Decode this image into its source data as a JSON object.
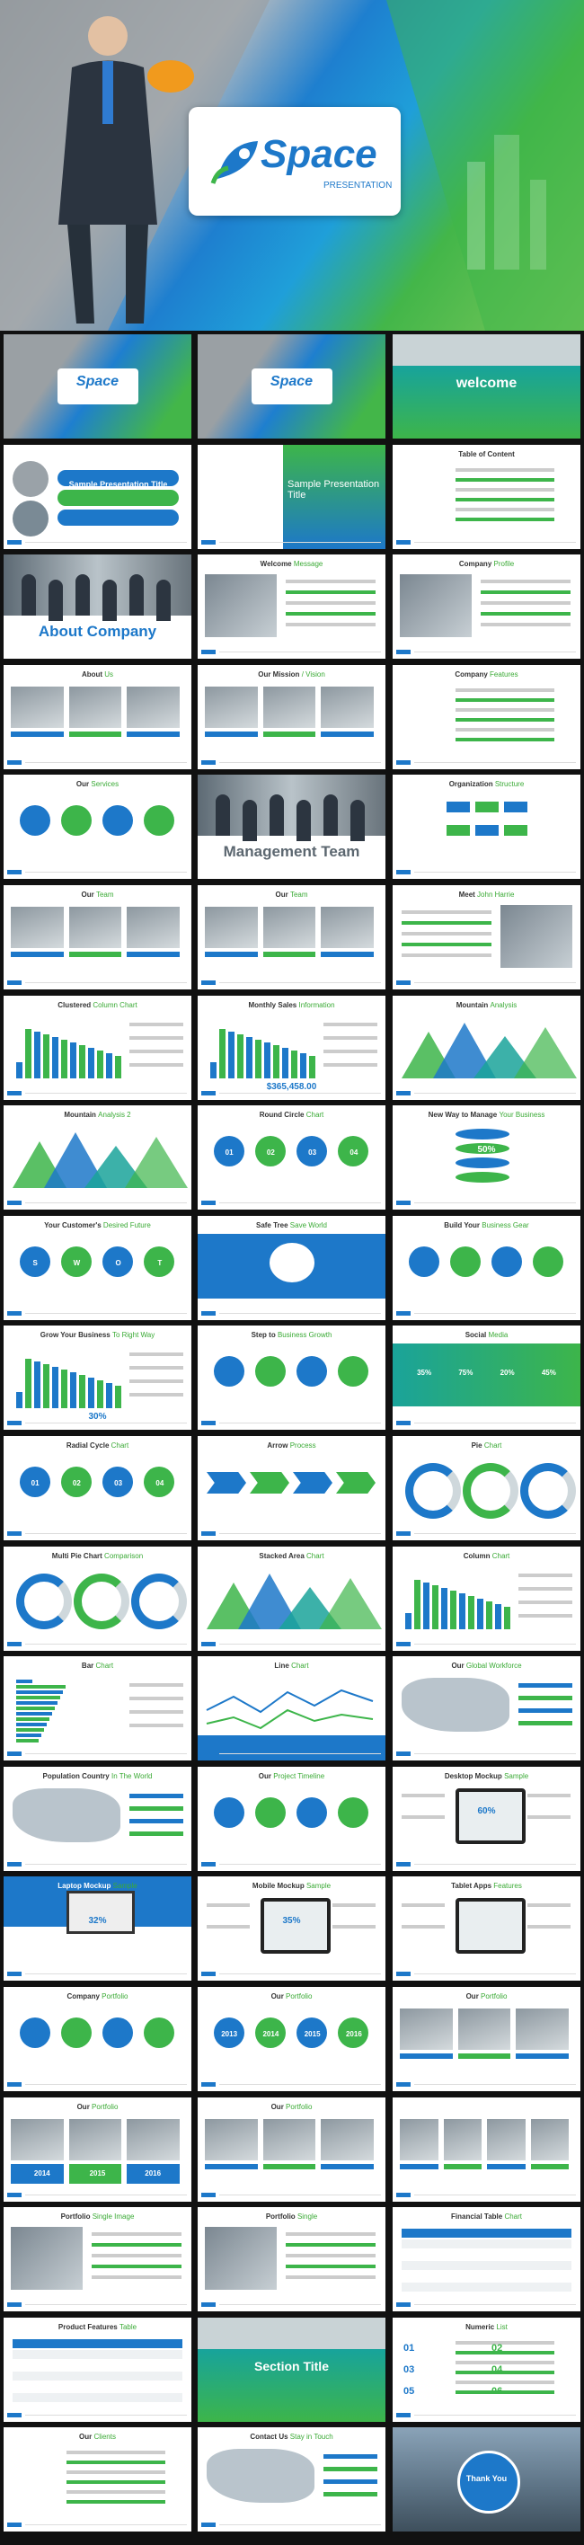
{
  "hero": {
    "logo": "Space",
    "tagline": "PRESENTATION"
  },
  "slides": [
    {
      "title": "Space"
    },
    {
      "title": "Space"
    },
    {
      "title": "welcome"
    },
    {
      "title": "Sample Presentation Title"
    },
    {
      "title": "Sample Presentation Title"
    },
    {
      "title": "Table of Content"
    },
    {
      "title": "About Company"
    },
    {
      "title": "Welcome",
      "accent": "Message"
    },
    {
      "title": "Company",
      "accent": "Profile"
    },
    {
      "title": "About",
      "accent": "Us"
    },
    {
      "title": "Our Mission",
      "accent": "/ Vision"
    },
    {
      "title": "Company",
      "accent": "Features"
    },
    {
      "title": "Our",
      "accent": "Services"
    },
    {
      "title": "Management Team"
    },
    {
      "title": "Organization",
      "accent": "Structure"
    },
    {
      "title": "Our",
      "accent": "Team"
    },
    {
      "title": "Our",
      "accent": "Team"
    },
    {
      "title": "Meet",
      "accent": "John Harrie"
    },
    {
      "title": "Clustered",
      "accent": "Column Chart"
    },
    {
      "title": "Monthly Sales",
      "accent": "Information",
      "labels": [
        "$365,458.00"
      ]
    },
    {
      "title": "Mountain",
      "accent": "Analysis"
    },
    {
      "title": "Mountain",
      "accent": "Analysis 2"
    },
    {
      "title": "Round Circle",
      "accent": "Chart",
      "labels": [
        "01",
        "02",
        "03",
        "04"
      ]
    },
    {
      "title": "New Way to Manage",
      "accent": "Your Business",
      "labels": [
        "50%"
      ]
    },
    {
      "title": "Your Customer's",
      "accent": "Desired Future",
      "labels": [
        "S",
        "W",
        "O",
        "T"
      ]
    },
    {
      "title": "Safe Tree",
      "accent": "Save World"
    },
    {
      "title": "Build Your",
      "accent": "Business Gear"
    },
    {
      "title": "Grow Your Business",
      "accent": "To Right Way",
      "labels": [
        "30%"
      ]
    },
    {
      "title": "Step to",
      "accent": "Business Growth"
    },
    {
      "title": "Social",
      "accent": "Media",
      "labels": [
        "35%",
        "75%",
        "20%",
        "45%"
      ]
    },
    {
      "title": "Radial Cycle",
      "accent": "Chart",
      "labels": [
        "01",
        "02",
        "03",
        "04"
      ]
    },
    {
      "title": "Arrow",
      "accent": "Process"
    },
    {
      "title": "Pie",
      "accent": "Chart"
    },
    {
      "title": "Multi Pie Chart",
      "accent": "Comparison"
    },
    {
      "title": "Stacked Area",
      "accent": "Chart"
    },
    {
      "title": "Column",
      "accent": "Chart"
    },
    {
      "title": "Bar",
      "accent": "Chart"
    },
    {
      "title": "Line",
      "accent": "Chart"
    },
    {
      "title": "Our",
      "accent": "Global Workforce"
    },
    {
      "title": "Population Country",
      "accent": "In The World"
    },
    {
      "title": "Our",
      "accent": "Project Timeline"
    },
    {
      "title": "Desktop Mockup",
      "accent": "Sample",
      "labels": [
        "60%"
      ]
    },
    {
      "title": "Laptop Mockup",
      "accent": "Sample",
      "labels": [
        "32%"
      ]
    },
    {
      "title": "Mobile Mockup",
      "accent": "Sample",
      "labels": [
        "35%"
      ]
    },
    {
      "title": "Tablet Apps",
      "accent": "Features"
    },
    {
      "title": "Company",
      "accent": "Portfolio"
    },
    {
      "title": "Our",
      "accent": "Portfolio",
      "labels": [
        "2013",
        "2014",
        "2015",
        "2016"
      ]
    },
    {
      "title": "Our",
      "accent": "Portfolio"
    },
    {
      "title": "Our",
      "accent": "Portfolio",
      "labels": [
        "2014",
        "2015",
        "2016"
      ]
    },
    {
      "title": "Our",
      "accent": "Portfolio"
    },
    {},
    {
      "title": "Portfolio",
      "accent": "Single Image"
    },
    {
      "title": "Portfolio",
      "accent": "Single"
    },
    {
      "title": "Financial Table",
      "accent": "Chart"
    },
    {
      "title": "Product Features",
      "accent": "Table"
    },
    {
      "title": "Section Title"
    },
    {
      "title": "Numeric",
      "accent": "List",
      "labels": [
        "01",
        "02",
        "03",
        "04",
        "05",
        "06"
      ]
    },
    {
      "title": "Our",
      "accent": "Clients"
    },
    {
      "title": "Contact Us",
      "accent": "Stay in Touch"
    },
    {
      "title": "Thank You"
    }
  ]
}
